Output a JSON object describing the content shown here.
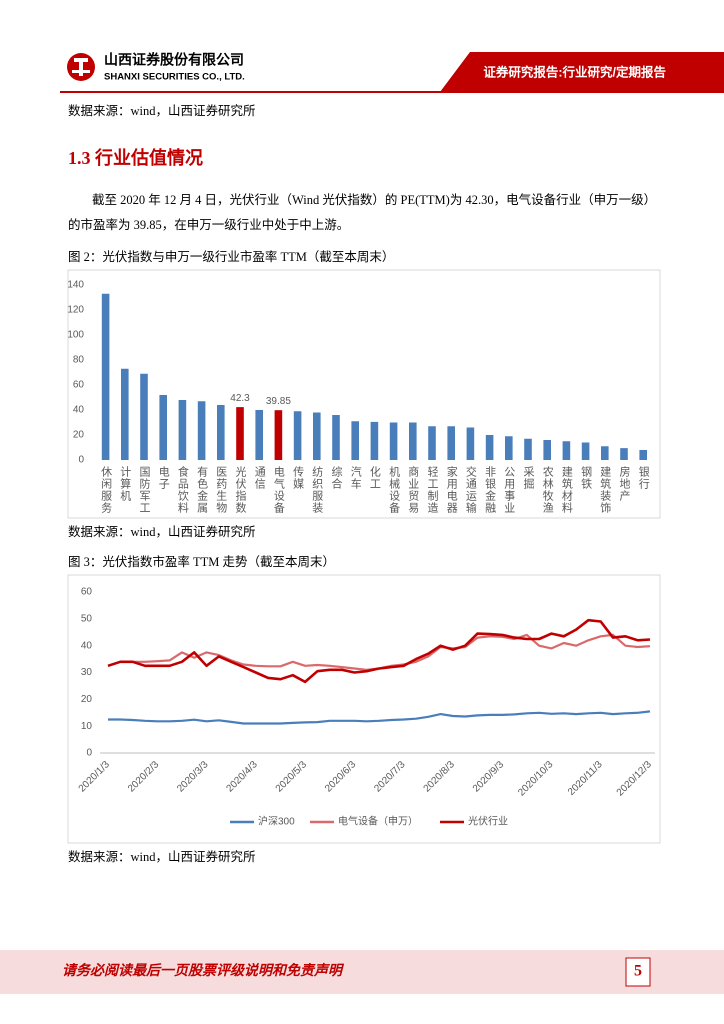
{
  "header": {
    "company_cn": "山西证券股份有限公司",
    "company_en": "SHANXI SECURITIES CO., LTD.",
    "report_type": "证券研究报告:行业研究/定期报告"
  },
  "top_source": "数据来源：wind，山西证券研究所",
  "section": {
    "heading": "1.3 行业估值情况",
    "paragraph": [
      "截至 2020 年 12 月 4 日，光伏行业（Wind 光伏指数）的 PE(TTM)为 42.30，电气设备行业（申万一级）",
      "的市盈率为 39.85，在申万一级行业中处于中上游。"
    ]
  },
  "chart_data": [
    {
      "type": "bar",
      "title": "图 2：光伏指数与申万一级行业市盈率 TTM（截至本周末）",
      "source": "数据来源：wind，山西证券研究所",
      "categories": [
        "休闲服务",
        "计算机",
        "国防军工",
        "电子",
        "食品饮料",
        "有色金属",
        "医药生物",
        "光伏指数",
        "通信",
        "电气设备",
        "传媒",
        "纺织服装",
        "综合",
        "汽车",
        "化工",
        "机械设备",
        "商业贸易",
        "轻工制造",
        "家用电器",
        "交通运输",
        "非银金融",
        "公用事业",
        "采掘",
        "农林牧渔",
        "建筑材料",
        "钢铁",
        "建筑装饰",
        "房地产",
        "银行"
      ],
      "values": [
        133,
        73,
        69,
        52,
        48,
        47,
        44,
        42.3,
        40,
        39.85,
        39,
        38,
        36,
        31,
        30.5,
        30,
        30,
        27,
        27,
        26,
        20,
        19,
        17,
        16,
        15,
        14,
        11,
        9.5,
        8
      ],
      "color": "#4a7ebb",
      "highlight_color": "#c00000",
      "colors": [
        "#4a7ebb",
        "#4a7ebb",
        "#4a7ebb",
        "#4a7ebb",
        "#4a7ebb",
        "#4a7ebb",
        "#4a7ebb",
        "#c00000",
        "#4a7ebb",
        "#c00000",
        "#4a7ebb",
        "#4a7ebb",
        "#4a7ebb",
        "#4a7ebb",
        "#4a7ebb",
        "#4a7ebb",
        "#4a7ebb",
        "#4a7ebb",
        "#4a7ebb",
        "#4a7ebb",
        "#4a7ebb",
        "#4a7ebb",
        "#4a7ebb",
        "#4a7ebb",
        "#4a7ebb",
        "#4a7ebb",
        "#4a7ebb",
        "#4a7ebb",
        "#4a7ebb"
      ],
      "ylim": [
        0,
        140
      ],
      "yticks": [
        0,
        20,
        40,
        60,
        80,
        100,
        120,
        140
      ],
      "grid": false
    },
    {
      "type": "line",
      "title": "图 3：光伏指数市盈率 TTM 走势（截至本周末）",
      "source": "数据来源：wind，山西证券研究所",
      "categories": [
        "2020/1/3",
        null,
        null,
        null,
        "2020/2/3",
        null,
        null,
        null,
        "2020/3/3",
        null,
        null,
        null,
        "2020/4/3",
        null,
        null,
        null,
        "2020/5/3",
        null,
        null,
        null,
        "2020/6/3",
        null,
        null,
        null,
        "2020/7/3",
        null,
        null,
        null,
        "2020/8/3",
        null,
        null,
        null,
        "2020/9/3",
        null,
        null,
        null,
        "2020/10/3",
        null,
        null,
        null,
        "2020/11/3",
        null,
        null,
        null,
        "2020/12/3"
      ],
      "series": [
        {
          "name": "沪深300",
          "color": "#4a7ebb",
          "values": [
            12.5,
            12.5,
            12.3,
            12.0,
            11.8,
            11.8,
            12.0,
            12.4,
            11.8,
            12.2,
            11.6,
            11.0,
            11.0,
            11.0,
            11.0,
            11.2,
            11.4,
            11.5,
            12.0,
            12.0,
            12.0,
            11.8,
            12.0,
            12.3,
            12.5,
            12.8,
            13.5,
            14.5,
            13.8,
            13.6,
            14.0,
            14.2,
            14.2,
            14.4,
            14.8,
            15.0,
            14.6,
            14.8,
            14.5,
            14.8,
            15.0,
            14.5,
            14.8,
            15.0,
            15.5
          ]
        },
        {
          "name": "电气设备（申万）",
          "color": "#d9696b",
          "values": [
            32.5,
            34,
            34,
            34,
            34.2,
            34.5,
            37.5,
            35.5,
            37.5,
            36.5,
            34.5,
            33,
            32.5,
            32.3,
            32.3,
            34,
            32.5,
            32.8,
            32.5,
            32,
            31.5,
            31,
            31.5,
            32.5,
            33,
            34,
            36,
            39.5,
            39,
            39.5,
            43,
            43.5,
            43.3,
            42.5,
            44,
            40,
            39,
            41,
            40,
            42,
            43.5,
            44,
            40,
            39.5,
            39.8
          ]
        },
        {
          "name": "光伏行业",
          "color": "#c00000",
          "values": [
            32.5,
            34,
            34,
            32.5,
            32.5,
            32.5,
            34,
            37.5,
            32.5,
            36,
            34,
            32,
            30,
            28,
            27.5,
            29,
            26.5,
            30.5,
            31,
            31,
            30,
            30.5,
            31.5,
            32,
            32.5,
            35,
            37,
            40,
            38.5,
            40,
            44.5,
            44.3,
            44,
            43,
            42.5,
            42.5,
            44.5,
            43.5,
            46,
            49.5,
            49,
            43,
            43.5,
            42,
            42.3
          ]
        }
      ],
      "ylim": [
        0,
        60
      ],
      "yticks": [
        0,
        10,
        20,
        30,
        40,
        50,
        60
      ],
      "grid": false,
      "legend": "bottom"
    }
  ],
  "footer": {
    "disclaimer": "请务必阅读最后一页股票评级说明和免责声明",
    "page": 5
  }
}
